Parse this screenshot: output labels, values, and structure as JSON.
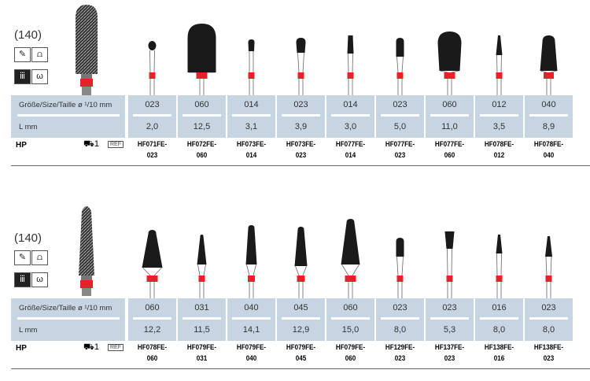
{
  "labels": {
    "size": "Größe/Size/Taille ø ¹/10 mm",
    "length": "L mm",
    "hp": "HP",
    "pack": "1",
    "ref": "REF"
  },
  "colors": {
    "table_bg": "#c7d4e1",
    "band": "#e8202a",
    "head": "#1a1a1a"
  },
  "blocks": [
    {
      "figure": "(140)",
      "icons": [
        "handpiece-icon",
        "crown-icon",
        "gingiva-icon",
        "model-icon"
      ],
      "columns": [
        {
          "size": "023",
          "length": "2,0",
          "code1": "HF071FE-",
          "code2": "023"
        },
        {
          "size": "060",
          "length": "12,5",
          "code1": "HF072FE-",
          "code2": "060"
        },
        {
          "size": "014",
          "length": "3,1",
          "code1": "HF073FE-",
          "code2": "014"
        },
        {
          "size": "023",
          "length": "3,9",
          "code1": "HF073FE-",
          "code2": "023"
        },
        {
          "size": "014",
          "length": "3,0",
          "code1": "HF077FE-",
          "code2": "014"
        },
        {
          "size": "023",
          "length": "5,0",
          "code1": "HF077FE-",
          "code2": "023"
        },
        {
          "size": "060",
          "length": "11,0",
          "code1": "HF077FE-",
          "code2": "060"
        },
        {
          "size": "012",
          "length": "3,5",
          "code1": "HF078FE-",
          "code2": "012"
        },
        {
          "size": "040",
          "length": "8,9",
          "code1": "HF078FE-",
          "code2": "040"
        }
      ]
    },
    {
      "figure": "(140)",
      "icons": [
        "handpiece-icon",
        "crown-icon",
        "gingiva-icon",
        "model-icon"
      ],
      "columns": [
        {
          "size": "060",
          "length": "12,2",
          "code1": "HF078FE-",
          "code2": "060"
        },
        {
          "size": "031",
          "length": "11,5",
          "code1": "HF079FE-",
          "code2": "031"
        },
        {
          "size": "040",
          "length": "14,1",
          "code1": "HF079FE-",
          "code2": "040"
        },
        {
          "size": "045",
          "length": "12,9",
          "code1": "HF079FE-",
          "code2": "045"
        },
        {
          "size": "060",
          "length": "15,0",
          "code1": "HF079FE-",
          "code2": "060"
        },
        {
          "size": "023",
          "length": "8,0",
          "code1": "HF129FE-",
          "code2": "023"
        },
        {
          "size": "023",
          "length": "5,3",
          "code1": "HF137FE-",
          "code2": "023"
        },
        {
          "size": "016",
          "length": "8,0",
          "code1": "HF138FE-",
          "code2": "016"
        },
        {
          "size": "023",
          "length": "8,0",
          "code1": "HF138FE-",
          "code2": "023"
        }
      ]
    }
  ]
}
